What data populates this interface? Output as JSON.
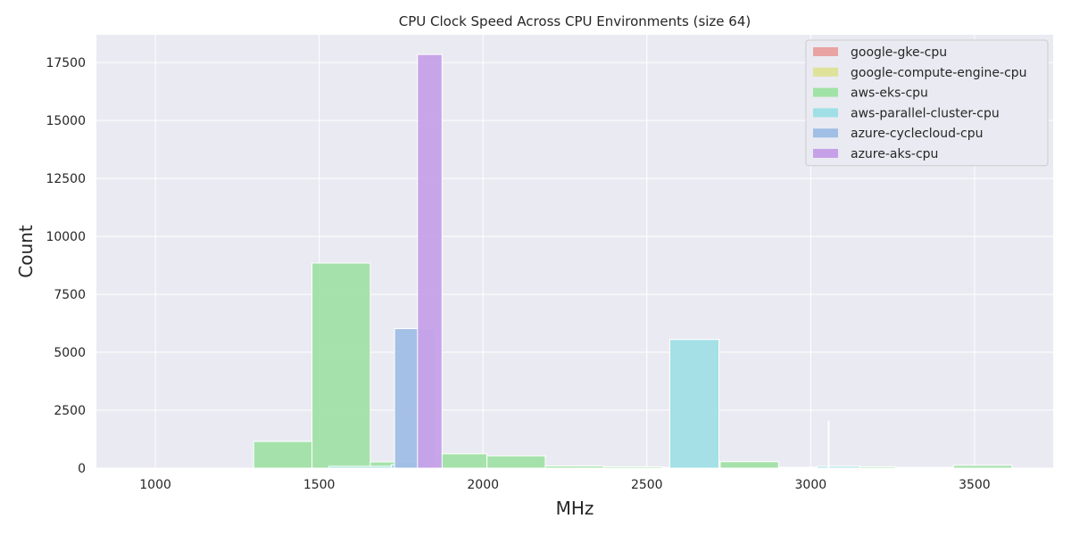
{
  "chart_data": {
    "type": "bar",
    "title": "CPU Clock Speed Across CPU Environments (size 64)",
    "xlabel": "MHz",
    "ylabel": "Count",
    "xlim": [
      820,
      3740
    ],
    "ylim": [
      0,
      18700
    ],
    "xticks": [
      1000,
      1500,
      2000,
      2500,
      3000,
      3500
    ],
    "xtick_labels": [
      "1000",
      "1500",
      "2000",
      "2500",
      "3000",
      "3500"
    ],
    "yticks": [
      0,
      2500,
      5000,
      7500,
      10000,
      12500,
      15000,
      17500
    ],
    "ytick_labels": [
      "0",
      "2500",
      "5000",
      "7500",
      "10000",
      "12500",
      "15000",
      "17500"
    ],
    "grid": true,
    "legend_position": "top-right",
    "series": [
      {
        "name": "google-gke-cpu",
        "color": "#e8a3a3",
        "bins": [
          {
            "x0": 2200,
            "x1": 2290,
            "count": 60
          }
        ]
      },
      {
        "name": "google-compute-engine-cpu",
        "color": "#dfe29a",
        "bins": [
          {
            "x0": 2290,
            "x1": 2380,
            "count": 40
          }
        ]
      },
      {
        "name": "aws-eks-cpu",
        "color": "#a1e2a6",
        "bins": [
          {
            "x0": 1300,
            "x1": 1478,
            "count": 1150
          },
          {
            "x0": 1478,
            "x1": 1656,
            "count": 8850
          },
          {
            "x0": 1656,
            "x1": 1834,
            "count": 270
          },
          {
            "x0": 1834,
            "x1": 2012,
            "count": 620
          },
          {
            "x0": 2012,
            "x1": 2190,
            "count": 530
          },
          {
            "x0": 2190,
            "x1": 2368,
            "count": 90
          },
          {
            "x0": 2368,
            "x1": 2546,
            "count": 60
          },
          {
            "x0": 2546,
            "x1": 2724,
            "count": 40
          },
          {
            "x0": 2724,
            "x1": 2902,
            "count": 280
          },
          {
            "x0": 2902,
            "x1": 3080,
            "count": 40
          },
          {
            "x0": 3080,
            "x1": 3258,
            "count": 60
          },
          {
            "x0": 3258,
            "x1": 3436,
            "count": 40
          },
          {
            "x0": 3436,
            "x1": 3614,
            "count": 120
          }
        ]
      },
      {
        "name": "aws-parallel-cluster-cpu",
        "color": "#a0dfe5",
        "bins": [
          {
            "x0": 1530,
            "x1": 1720,
            "count": 80
          },
          {
            "x0": 1720,
            "x1": 1760,
            "count": 150
          },
          {
            "x0": 2570,
            "x1": 2720,
            "count": 5550
          },
          {
            "x0": 3020,
            "x1": 3150,
            "count": 80
          }
        ]
      },
      {
        "name": "azure-cyclecloud-cpu",
        "color": "#a1bee5",
        "bins": [
          {
            "x0": 1740,
            "x1": 1800,
            "count": 250
          },
          {
            "x0": 1800,
            "x1": 1860,
            "count": 600
          },
          {
            "x0": 1730,
            "x1": 1855,
            "count": 6020
          }
        ]
      },
      {
        "name": "azure-aks-cpu",
        "color": "#c6a1e8",
        "bins": [
          {
            "x0": 1800,
            "x1": 1875,
            "count": 17850
          }
        ]
      }
    ],
    "annotations": [
      {
        "type": "vline",
        "x": 3055,
        "count": 2050,
        "color": "#ffffff"
      }
    ]
  }
}
